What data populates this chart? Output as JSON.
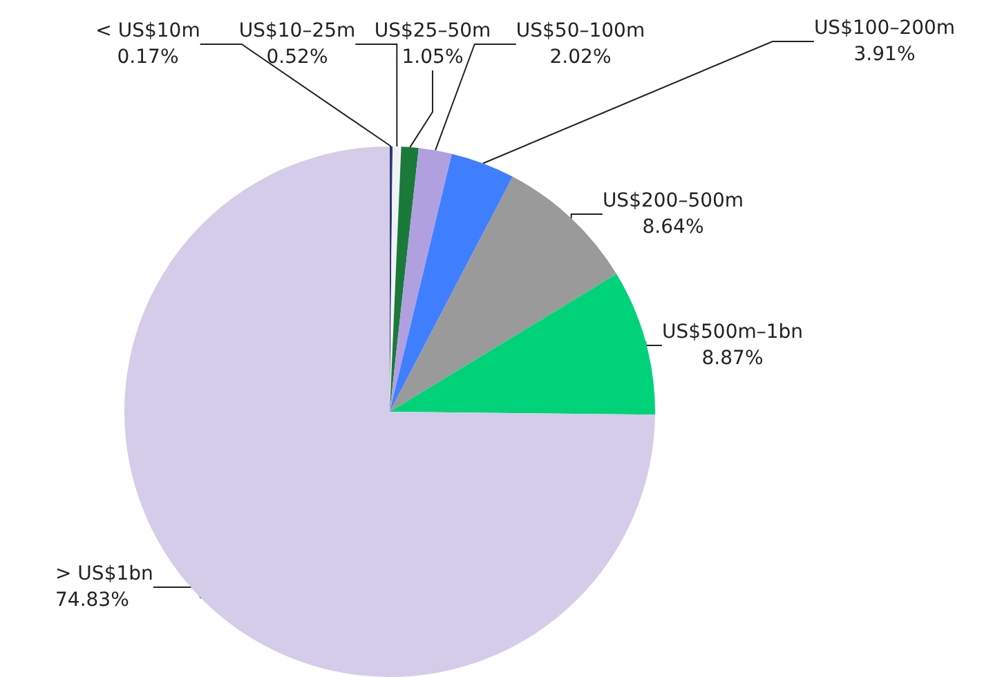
{
  "chart_data": {
    "type": "pie",
    "categories": [
      "< US$10m",
      "US$10–25m",
      "US$25–50m",
      "US$50–100m",
      "US$100–200m",
      "US$200–500m",
      "US$500m–1bn",
      "> US$1bn"
    ],
    "values": [
      0.17,
      0.52,
      1.05,
      2.02,
      3.91,
      8.64,
      8.87,
      74.83
    ],
    "colors": [
      "#2a3a7a",
      "#f2f2f6",
      "#1a7a3a",
      "#b0a0e0",
      "#3f7fff",
      "#9a9a9a",
      "#00d27a",
      "#d4cce8"
    ],
    "value_labels": [
      "0.17%",
      "0.52%",
      "1.05%",
      "2.02%",
      "3.91%",
      "8.64%",
      "8.87%",
      "74.83%"
    ],
    "legend": false
  }
}
